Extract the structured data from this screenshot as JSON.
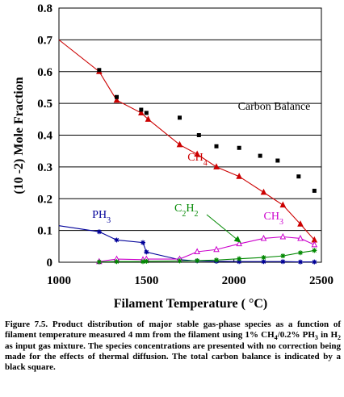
{
  "chart_data": {
    "type": "line",
    "xlabel": "Filament Temperature ( °C)",
    "ylabel": "(10 -2) Mole Fraction",
    "xlim": [
      1000,
      2500
    ],
    "ylim": [
      0,
      0.8
    ],
    "x_ticks": [
      "1000",
      "1500",
      "2000",
      "2500"
    ],
    "y_ticks": [
      "0",
      "0.1",
      "0.2",
      "0.3",
      "0.4",
      "0.5",
      "0.6",
      "0.7",
      "0.8"
    ],
    "grid": "horizontal",
    "series": [
      {
        "name": "CH4",
        "color": "#cc0000",
        "marker": "filled-triangle",
        "x": [
          1000,
          1230,
          1330,
          1470,
          1510,
          1690,
          1790,
          1900,
          2030,
          2170,
          2280,
          2380,
          2460
        ],
        "y": [
          0.7,
          0.6,
          0.51,
          0.47,
          0.45,
          0.37,
          0.34,
          0.3,
          0.27,
          0.22,
          0.18,
          0.12,
          0.07
        ]
      },
      {
        "name": "PH3",
        "color": "#000099",
        "marker": "star",
        "x": [
          1000,
          1230,
          1330,
          1480,
          1500,
          1690,
          1790,
          1900,
          2030,
          2170,
          2280,
          2380,
          2460
        ],
        "y": [
          0.115,
          0.096,
          0.07,
          0.062,
          0.032,
          0.008,
          0.004,
          0.003,
          0.002,
          0.002,
          0.002,
          0.001,
          0.001
        ]
      },
      {
        "name": "CH3",
        "color": "#cc00cc",
        "marker": "open-triangle",
        "x": [
          1230,
          1330,
          1480,
          1500,
          1690,
          1790,
          1900,
          2030,
          2170,
          2280,
          2380,
          2460
        ],
        "y": [
          0.002,
          0.01,
          0.008,
          0.01,
          0.01,
          0.033,
          0.04,
          0.058,
          0.075,
          0.08,
          0.075,
          0.055
        ]
      },
      {
        "name": "C2H2",
        "color": "#008800",
        "marker": "star",
        "x": [
          1230,
          1330,
          1480,
          1500,
          1690,
          1790,
          1900,
          2030,
          2170,
          2280,
          2380,
          2460
        ],
        "y": [
          0.001,
          0.002,
          0.002,
          0.003,
          0.004,
          0.005,
          0.007,
          0.011,
          0.015,
          0.02,
          0.03,
          0.037
        ]
      }
    ],
    "carbon_balance": {
      "name": "Carbon Balance",
      "color": "#000000",
      "marker": "filled-square",
      "x": [
        1230,
        1330,
        1470,
        1500,
        1690,
        1800,
        1900,
        2030,
        2150,
        2250,
        2370,
        2460
      ],
      "y": [
        0.605,
        0.52,
        0.48,
        0.47,
        0.455,
        0.4,
        0.365,
        0.36,
        0.335,
        0.32,
        0.27,
        0.225
      ]
    },
    "annotations": [
      {
        "text": "Carbon Balance",
        "x": 2230,
        "y": 0.48
      },
      {
        "text": "CH",
        "sub": "4",
        "x": 1735,
        "y": 0.32
      },
      {
        "text": "PH",
        "sub": "3",
        "x": 1190,
        "y": 0.14
      },
      {
        "text": "C",
        "sub": "2",
        "text2": "H",
        "sub2": "2",
        "x": 1660,
        "y": 0.16
      },
      {
        "text": "CH",
        "sub": "3",
        "x": 2170,
        "y": 0.135
      }
    ]
  },
  "caption": {
    "label": "Figure 7.5.",
    "text_1": " Product distribution of major stable gas-phase species as a function of filament temperature measured 4 mm from the filament using 1% CH",
    "sub_1": "4",
    "text_2": "/0.2% PH",
    "sub_2": "3",
    "text_3": " in H",
    "sub_3": "2",
    "text_4": " as input gas mixture. The species concentrations are presented with no correction being made for the effects of thermal diffusion. The total carbon balance is indicated by a black square."
  },
  "colors": {
    "grid": "#000000",
    "background": "#ffffff"
  }
}
